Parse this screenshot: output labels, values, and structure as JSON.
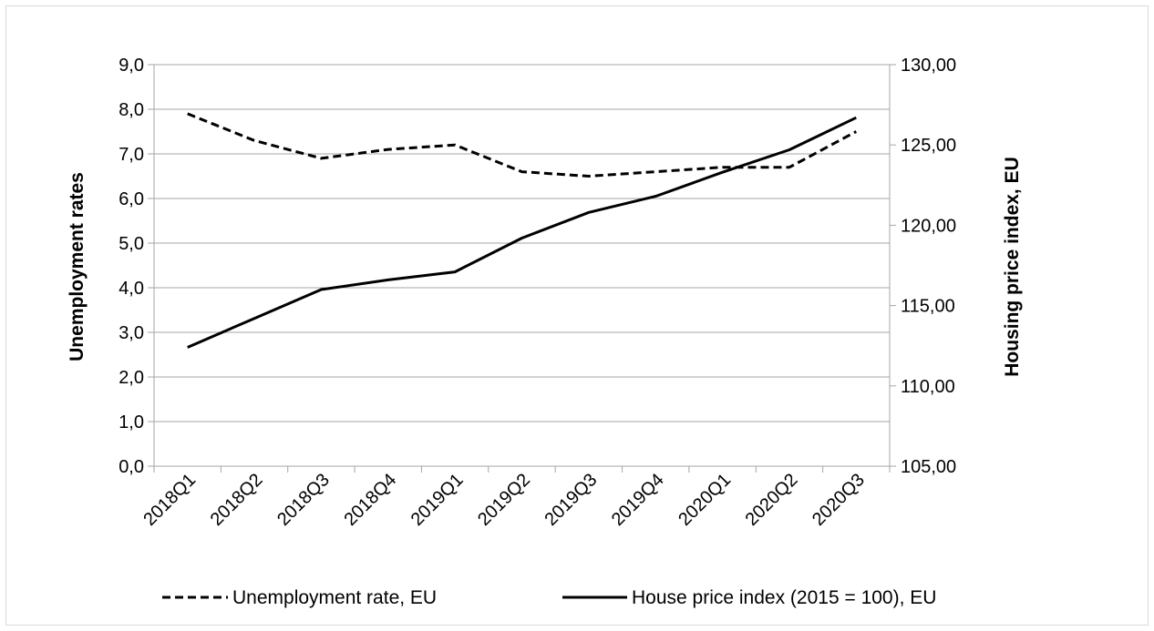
{
  "chart_data": {
    "type": "line",
    "categories": [
      "2018Q1",
      "2018Q2",
      "2018Q3",
      "2018Q4",
      "2019Q1",
      "2019Q2",
      "2019Q3",
      "2019Q4",
      "2020Q1",
      "2020Q2",
      "2020Q3"
    ],
    "y_axis": {
      "label": "Unemployment rates",
      "ylim": [
        0,
        9
      ],
      "ticks": [
        0,
        1,
        2,
        3,
        4,
        5,
        6,
        7,
        8,
        9
      ],
      "tick_labels": [
        "0,0",
        "1,0",
        "2,0",
        "3,0",
        "4,0",
        "5,0",
        "6,0",
        "7,0",
        "8,0",
        "9,0"
      ]
    },
    "y2_axis": {
      "label": "Housing price index, EU",
      "ylim": [
        105,
        130
      ],
      "ticks": [
        105,
        110,
        115,
        120,
        125,
        130
      ],
      "tick_labels": [
        "105,00",
        "110,00",
        "115,00",
        "120,00",
        "125,00",
        "130,00"
      ]
    },
    "grid": true,
    "legend": "bottom",
    "series": [
      {
        "name": "Unemployment rate, EU",
        "axis": "left",
        "line_style": "dashed",
        "color": "#000000",
        "values": [
          7.9,
          7.3,
          6.9,
          7.1,
          7.2,
          6.6,
          6.5,
          6.6,
          6.7,
          6.7,
          7.5
        ]
      },
      {
        "name": "House price index (2015 = 100), EU",
        "axis": "right",
        "line_style": "solid",
        "color": "#000000",
        "values": [
          112.4,
          114.2,
          116.0,
          116.6,
          117.1,
          119.2,
          120.8,
          121.8,
          123.3,
          124.7,
          126.7
        ]
      }
    ]
  }
}
